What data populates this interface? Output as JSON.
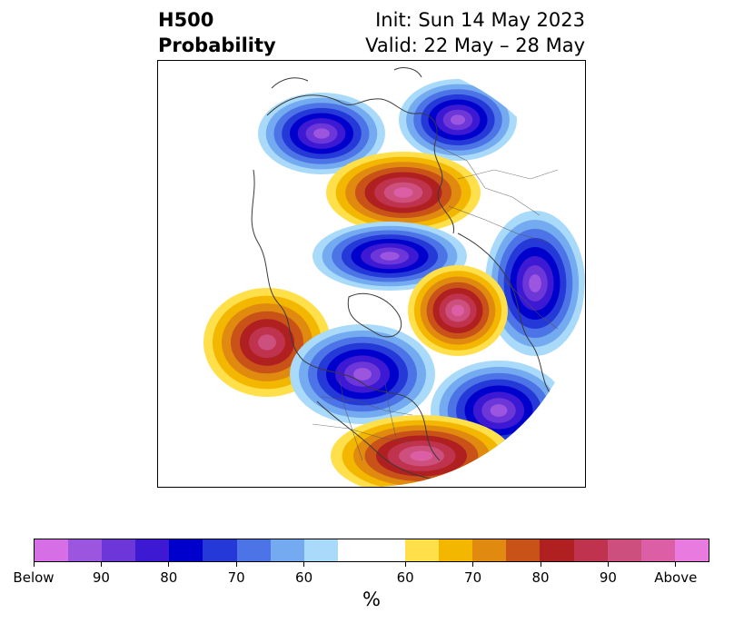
{
  "title": {
    "left_line1": "H500",
    "left_line2": "Probability",
    "right_line1": "Init: Sun 14 May 2023",
    "right_line2": "Valid: 22 May – 28 May"
  },
  "colorbar": {
    "unit": "%",
    "tick_labels": [
      "Below",
      "90",
      "80",
      "70",
      "60",
      "60",
      "70",
      "80",
      "90",
      "Above"
    ],
    "below_colors": [
      "#d66fe6",
      "#9b55de",
      "#6c36d9",
      "#3d19d3",
      "#0000cc",
      "#2538d8",
      "#4d74e6",
      "#74aaf0",
      "#a9dafa"
    ],
    "neutral_color": "#ffffff",
    "above_colors": [
      "#ffe04a",
      "#f4b700",
      "#e08a10",
      "#c85218",
      "#b02020",
      "#c0334e",
      "#cc4f7e",
      "#dc5fa6",
      "#e97ae0"
    ]
  },
  "map": {
    "projection": "north-polar-stereographic",
    "anomalies": [
      {
        "type": "below",
        "level": 0.85,
        "region": "Northeast Canada / Baffin"
      },
      {
        "type": "below",
        "level": 0.92,
        "region": "Eastern Siberia"
      },
      {
        "type": "above",
        "level": 0.88,
        "region": "Arctic Ocean / Beaufort"
      },
      {
        "type": "below",
        "level": 0.93,
        "region": "Barents-Kara Sea"
      },
      {
        "type": "below",
        "level": 0.9,
        "region": "Scandinavia / Western Russia"
      },
      {
        "type": "above",
        "level": 0.9,
        "region": "Western Siberia / Kazakhstan"
      },
      {
        "type": "above",
        "level": 0.8,
        "region": "North Atlantic / Greenland"
      },
      {
        "type": "below",
        "level": 0.92,
        "region": "Western Europe"
      },
      {
        "type": "below",
        "level": 0.85,
        "region": "Northwest Africa / Iberia"
      },
      {
        "type": "above",
        "level": 0.85,
        "region": "Southern Asia"
      }
    ]
  }
}
